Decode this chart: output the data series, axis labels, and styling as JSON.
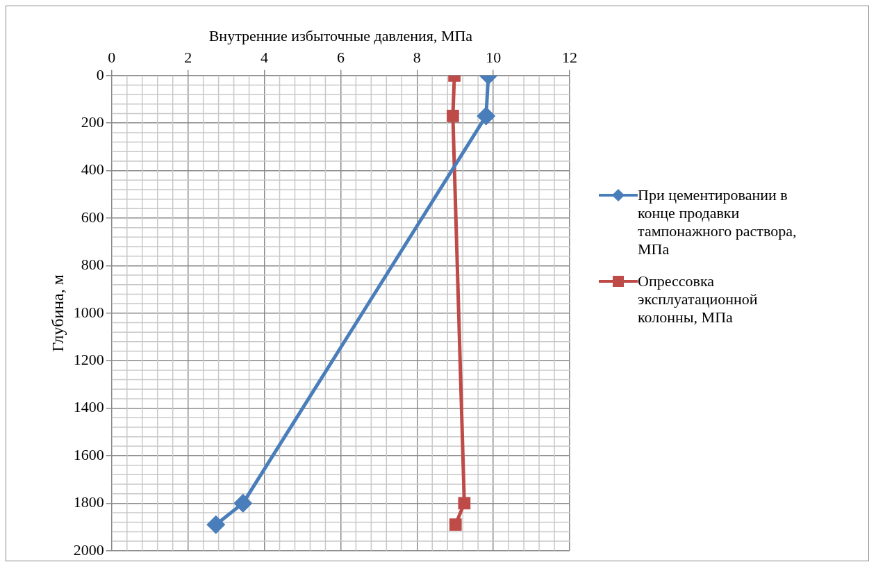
{
  "chart_data": {
    "type": "line",
    "xlabel": "Внутренние избыточные давления, МПа",
    "ylabel": "Глубина, м",
    "xlim": [
      0,
      12
    ],
    "xticks": [
      0,
      2,
      4,
      6,
      8,
      10,
      12
    ],
    "ylim": [
      2000,
      0
    ],
    "yticks": [
      0,
      200,
      400,
      600,
      800,
      1000,
      1200,
      1400,
      1600,
      1800,
      2000
    ],
    "grid": true,
    "legend": "right",
    "line_style": "solid",
    "series": [
      {
        "name": "При цементировании в конце продавки тампонажного раствора, МПа",
        "color": "#4a7ebb",
        "marker": "diamond",
        "x": [
          9.87,
          9.81,
          3.44,
          2.73
        ],
        "values": [
          0,
          170,
          1800,
          1890
        ]
      },
      {
        "name": "Опрессовка эксплуатационной колонны, МПа",
        "color": "#be4b48",
        "marker": "square",
        "x": [
          8.98,
          8.94,
          9.24,
          9.01
        ],
        "values": [
          0,
          170,
          1800,
          1890
        ]
      }
    ]
  }
}
